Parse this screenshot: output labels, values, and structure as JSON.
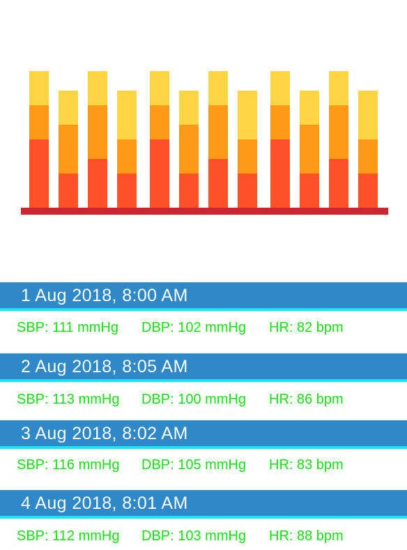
{
  "icons": {
    "bar_chart": "bar-chart-illustration"
  },
  "colors": {
    "header_bg": "#2f89c9",
    "header_accent": "#19e6f0",
    "header_text": "#ffffff",
    "metric_text": "#18e016",
    "bar_bottom": "#ff5127",
    "bar_middle": "#ff9a16",
    "bar_top": "#ffd544",
    "baseline": "#cc2630"
  },
  "entries": [
    {
      "datetime": "1 Aug 2018, 8:00 AM",
      "sbp": "SBP: 111 mmHg",
      "dbp": "DBP: 102 mmHg",
      "hr": "HR: 82 bpm"
    },
    {
      "datetime": "2 Aug 2018, 8:05 AM",
      "sbp": "SBP: 113 mmHg",
      "dbp": "DBP: 100 mmHg",
      "hr": "HR: 86 bpm"
    },
    {
      "datetime": "3 Aug 2018, 8:02 AM",
      "sbp": "SBP: 116 mmHg",
      "dbp": "DBP: 105 mmHg",
      "hr": "HR: 83 bpm"
    },
    {
      "datetime": "4 Aug 2018, 8:01 AM",
      "sbp": "SBP: 112 mmHg",
      "dbp": "DBP: 103 mmHg",
      "hr": "HR: 88 bpm"
    }
  ]
}
